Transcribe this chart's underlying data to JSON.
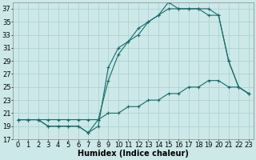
{
  "xlabel": "Humidex (Indice chaleur)",
  "bg_color": "#cce8e8",
  "grid_color": "#aacece",
  "line_color": "#1a6b6b",
  "xlim": [
    -0.5,
    23.5
  ],
  "ylim": [
    17,
    38
  ],
  "yticks": [
    17,
    19,
    21,
    23,
    25,
    27,
    29,
    31,
    33,
    35,
    37
  ],
  "xticks": [
    0,
    1,
    2,
    3,
    4,
    5,
    6,
    7,
    8,
    9,
    10,
    11,
    12,
    13,
    14,
    15,
    16,
    17,
    18,
    19,
    20,
    21,
    22,
    23
  ],
  "line1_x": [
    0,
    1,
    2,
    3,
    4,
    5,
    6,
    7,
    8,
    9,
    10,
    11,
    12,
    13,
    14,
    15,
    16,
    17,
    18,
    19,
    20,
    21,
    22,
    23
  ],
  "line1_y": [
    20,
    20,
    20,
    19,
    19,
    19,
    19,
    18,
    19,
    28,
    31,
    32,
    34,
    35,
    36,
    38,
    37,
    37,
    37,
    37,
    36,
    29,
    25,
    24
  ],
  "line2_x": [
    0,
    1,
    2,
    3,
    4,
    5,
    6,
    7,
    8,
    9,
    10,
    11,
    12,
    13,
    14,
    15,
    16,
    17,
    18,
    19,
    20,
    21,
    22,
    23
  ],
  "line2_y": [
    20,
    20,
    20,
    19,
    19,
    19,
    19,
    18,
    20,
    26,
    30,
    32,
    33,
    35,
    36,
    37,
    37,
    37,
    37,
    36,
    36,
    29,
    25,
    24
  ],
  "line3_x": [
    0,
    1,
    2,
    3,
    4,
    5,
    6,
    7,
    8,
    9,
    10,
    11,
    12,
    13,
    14,
    15,
    16,
    17,
    18,
    19,
    20,
    21,
    22,
    23
  ],
  "line3_y": [
    20,
    20,
    20,
    20,
    20,
    20,
    20,
    20,
    20,
    21,
    21,
    22,
    22,
    23,
    23,
    24,
    24,
    25,
    25,
    26,
    26,
    25,
    25,
    24
  ],
  "font_size_label": 7,
  "font_size_tick": 6
}
